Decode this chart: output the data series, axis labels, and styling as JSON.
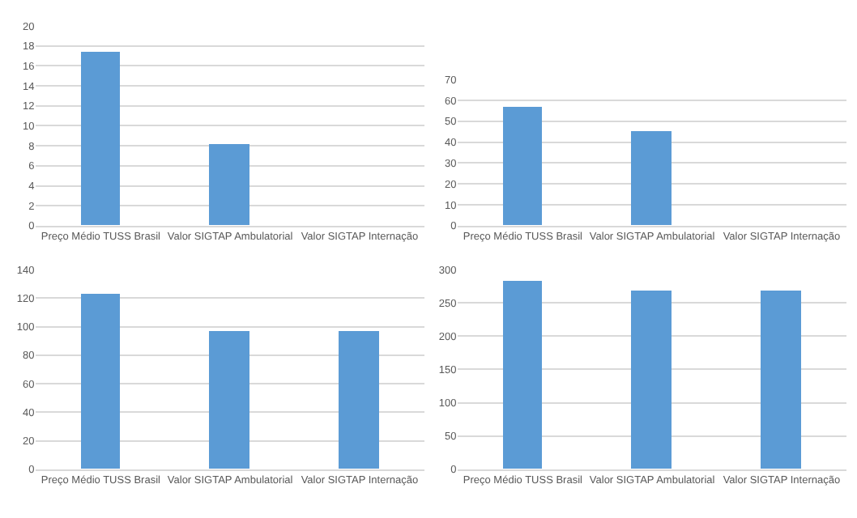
{
  "chart_data": [
    {
      "type": "bar",
      "categories": [
        "Preço Médio TUSS Brasil",
        "Valor SIGTAP Ambulatorial",
        "Valor SIGTAP Internação"
      ],
      "values": [
        17.4,
        8.1,
        null
      ],
      "color": "#5b9bd5",
      "ylim": [
        0,
        20
      ],
      "yticks": [
        0,
        2,
        4,
        6,
        8,
        10,
        12,
        14,
        16,
        18,
        20
      ],
      "grid": "y"
    },
    {
      "type": "bar",
      "categories": [
        "Preço Médio TUSS Brasil",
        "Valor SIGTAP Ambulatorial",
        "Valor SIGTAP Internação"
      ],
      "values": [
        57,
        45,
        null
      ],
      "color": "#5b9bd5",
      "ylim": [
        0,
        70
      ],
      "yticks": [
        0,
        10,
        20,
        30,
        40,
        50,
        60,
        70
      ],
      "grid": "y"
    },
    {
      "type": "bar",
      "categories": [
        "Preço Médio TUSS Brasil",
        "Valor SIGTAP Ambulatorial",
        "Valor SIGTAP Internação"
      ],
      "values": [
        123,
        97,
        97
      ],
      "color": "#5b9bd5",
      "ylim": [
        0,
        140
      ],
      "yticks": [
        0,
        20,
        40,
        60,
        80,
        100,
        120,
        140
      ],
      "grid": "y"
    },
    {
      "type": "bar",
      "categories": [
        "Preço Médio TUSS Brasil",
        "Valor SIGTAP Ambulatorial",
        "Valor SIGTAP Internação"
      ],
      "values": [
        282,
        268,
        268
      ],
      "color": "#5b9bd5",
      "ylim": [
        0,
        300
      ],
      "yticks": [
        0,
        50,
        100,
        150,
        200,
        250,
        300
      ],
      "grid": "y"
    }
  ]
}
